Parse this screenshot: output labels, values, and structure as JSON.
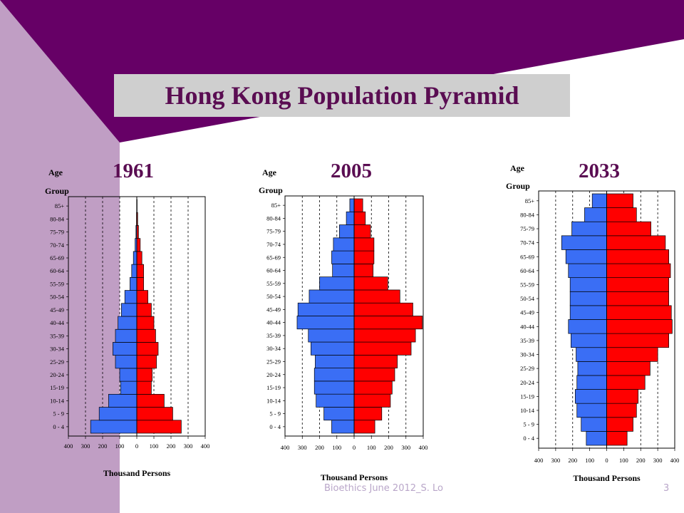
{
  "slide": {
    "title": "Hong Kong Population Pyramid",
    "footer": "Bioethics June 2012_S. Lo",
    "page_number": "3"
  },
  "colors": {
    "male": "#3a6ef5",
    "female": "#ff0000",
    "header": "#660066",
    "side": "#c09ec4",
    "title_text": "#5a0d52"
  },
  "chart_data": [
    {
      "type": "bar",
      "title": "1961",
      "ylabel": "Age Group",
      "xlabel": "Thousand Persons",
      "x_ticks": [
        "400",
        "300",
        "200",
        "100",
        "0",
        "100",
        "200",
        "300",
        "400"
      ],
      "xlim": [
        -400,
        400
      ],
      "categories": [
        "0 - 4",
        "5 - 9",
        "10-14",
        "15-19",
        "20-24",
        "25-29",
        "30-34",
        "35-39",
        "40-44",
        "45-49",
        "50-54",
        "55-59",
        "60-64",
        "65-69",
        "70-74",
        "75-79",
        "80-84",
        "85+"
      ],
      "series": [
        {
          "values": [
            270,
            220,
            165,
            95,
            100,
            125,
            140,
            125,
            110,
            90,
            70,
            40,
            30,
            20,
            10,
            5,
            2,
            1
          ]
        },
        {
          "values": [
            260,
            210,
            160,
            85,
            90,
            115,
            125,
            110,
            100,
            85,
            65,
            40,
            40,
            30,
            20,
            10,
            5,
            2
          ]
        }
      ]
    },
    {
      "type": "bar",
      "title": "2005",
      "ylabel": "Age Group",
      "xlabel": "Thousand Persons",
      "x_ticks": [
        "400",
        "300",
        "200",
        "100",
        "0",
        "100",
        "200",
        "300",
        "400"
      ],
      "xlim": [
        -400,
        400
      ],
      "categories": [
        "0 - 4",
        "5 - 9",
        "10-14",
        "15-19",
        "20-24",
        "25-29",
        "30-34",
        "35-39",
        "40-44",
        "45-49",
        "50-54",
        "55-59",
        "60-64",
        "65-69",
        "70-74",
        "75-79",
        "80-84",
        "85+"
      ],
      "series": [
        {
          "values": [
            130,
            175,
            220,
            230,
            230,
            225,
            250,
            265,
            330,
            325,
            260,
            200,
            125,
            130,
            120,
            85,
            45,
            25
          ]
        },
        {
          "values": [
            120,
            160,
            210,
            220,
            235,
            250,
            330,
            355,
            395,
            340,
            265,
            195,
            110,
            115,
            115,
            95,
            65,
            50
          ]
        }
      ]
    },
    {
      "type": "bar",
      "title": "2033",
      "ylabel": "Age Group",
      "xlabel": "Thousand Persons",
      "x_ticks": [
        "400",
        "300",
        "200",
        "100",
        "0",
        "100",
        "200",
        "300",
        "400"
      ],
      "xlim": [
        -400,
        400
      ],
      "categories": [
        "0 - 4",
        "5 - 9",
        "10-14",
        "15-19",
        "20-24",
        "25-29",
        "30-34",
        "35-39",
        "40-44",
        "45-49",
        "50-54",
        "55-59",
        "60-64",
        "65-69",
        "70-74",
        "75-79",
        "80-84",
        "85+"
      ],
      "series": [
        {
          "values": [
            120,
            150,
            175,
            185,
            175,
            170,
            180,
            210,
            225,
            215,
            215,
            215,
            225,
            240,
            265,
            205,
            130,
            85
          ]
        },
        {
          "values": [
            120,
            155,
            175,
            185,
            225,
            255,
            300,
            365,
            385,
            380,
            365,
            365,
            375,
            365,
            345,
            260,
            175,
            155
          ]
        }
      ]
    }
  ]
}
